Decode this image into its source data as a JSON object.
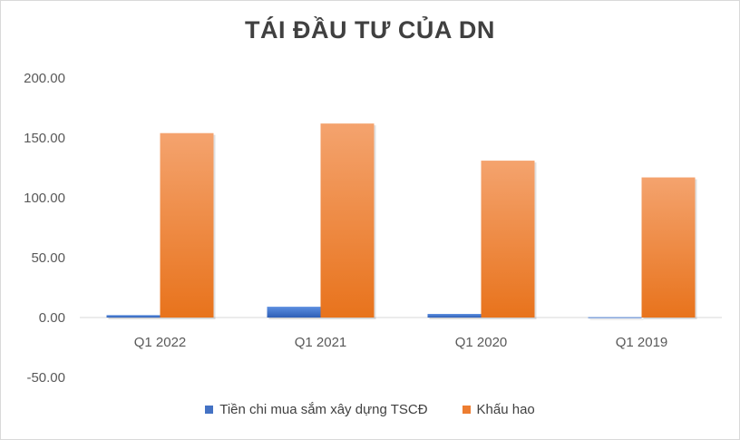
{
  "chart_data": {
    "type": "bar",
    "title": "TÁI ĐẦU TƯ CỦA DN",
    "xlabel": "",
    "ylabel": "",
    "categories": [
      "Q1 2022",
      "Q1 2021",
      "Q1 2020",
      "Q1 2019"
    ],
    "series": [
      {
        "name": "Tiền chi mua sắm xây dựng TSCĐ",
        "values": [
          2.0,
          9.0,
          3.0,
          0.3
        ],
        "color": "#4472c4"
      },
      {
        "name": "Khấu hao",
        "values": [
          154.0,
          162.0,
          131.0,
          117.0
        ],
        "color": "#ed7d31"
      }
    ],
    "ylim": [
      -50,
      200
    ],
    "yticks": [
      "200.00",
      "150.00",
      "100.00",
      "50.00",
      "0.00",
      "-50.00"
    ],
    "ytick_values": [
      200,
      150,
      100,
      50,
      0,
      -50
    ],
    "grid": false,
    "legend": "bottom"
  }
}
